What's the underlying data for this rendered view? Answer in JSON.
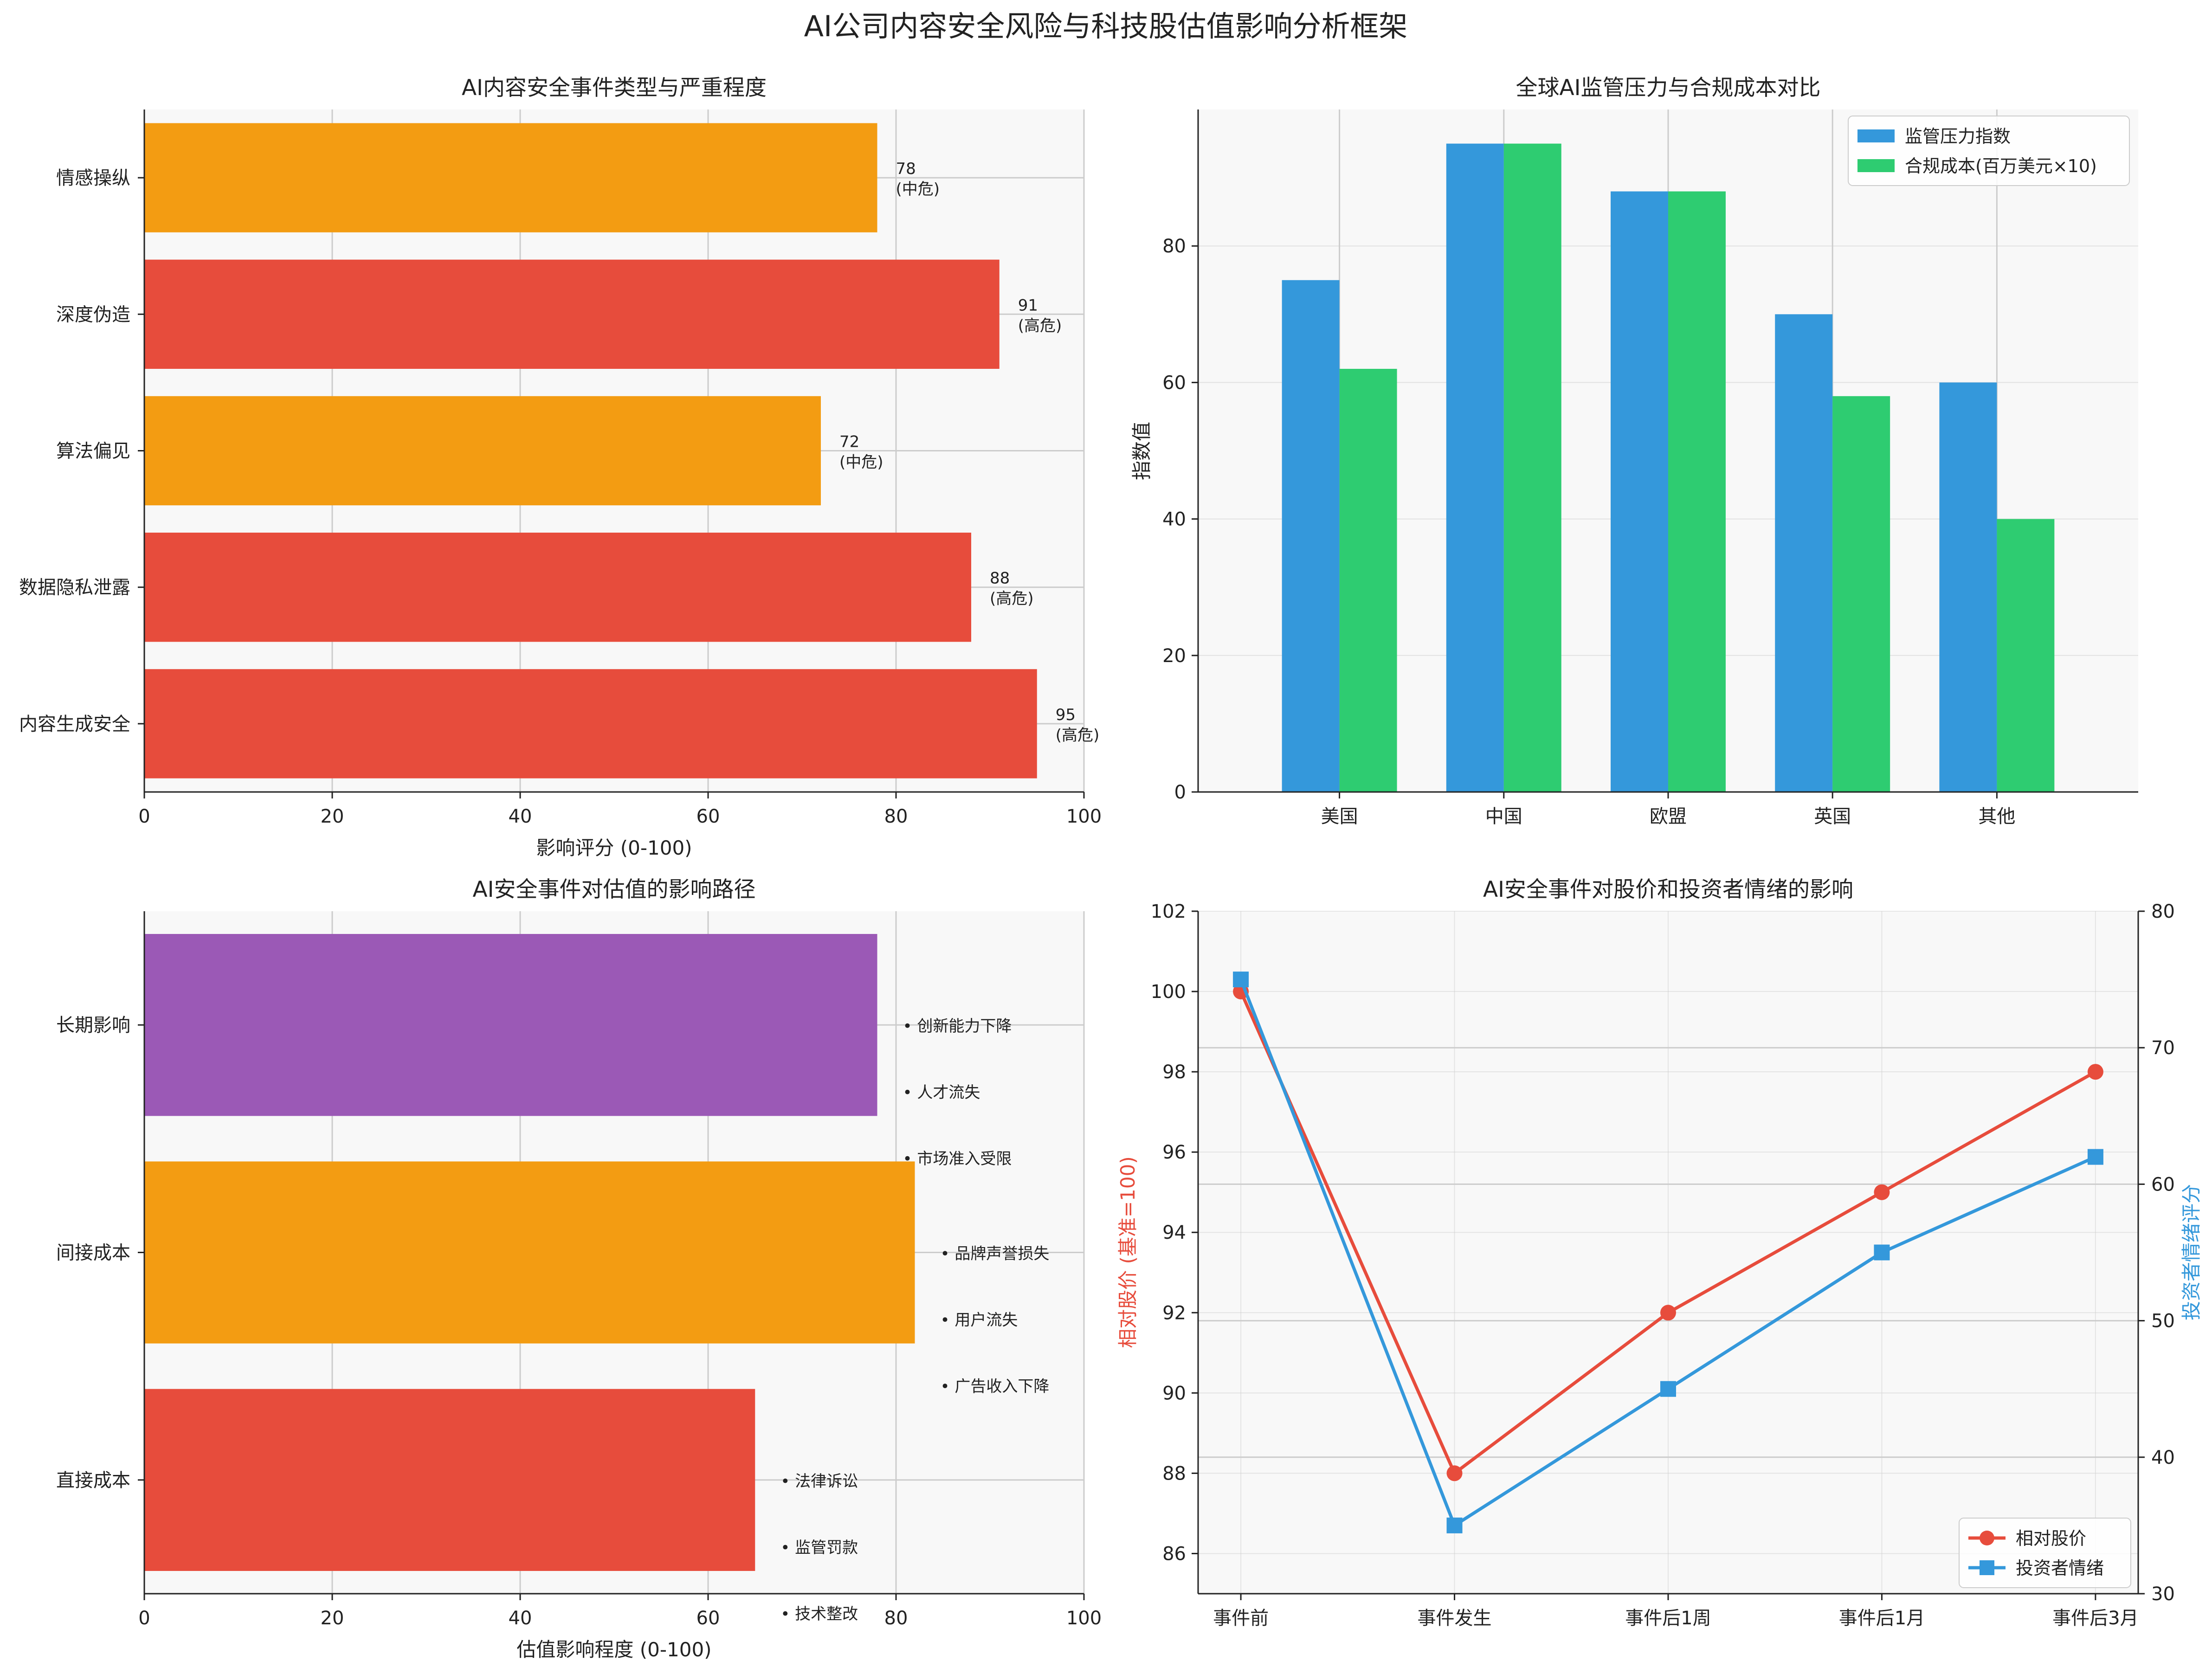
{
  "figure_title": "AI公司内容安全风险与科技股估值影响分析框架",
  "colors": {
    "red": "#e74c3c",
    "orange": "#f39c12",
    "purple": "#9b59b6",
    "blue": "#3498db",
    "green": "#2ecc71",
    "panel_bg": "#f8f8f8",
    "grid": "#cccccc"
  },
  "chart_data": [
    {
      "id": "incidents",
      "type": "bar",
      "orientation": "horizontal",
      "title": "AI内容安全事件类型与严重程度",
      "xlabel": "影响评分 (0-100)",
      "ylabel": "",
      "xlim": [
        0,
        100
      ],
      "xticks": [
        0,
        20,
        40,
        60,
        80,
        100
      ],
      "categories": [
        "内容生成安全",
        "数据隐私泄露",
        "算法偏见",
        "深度伪造",
        "情感操纵"
      ],
      "values": [
        95,
        88,
        72,
        91,
        78
      ],
      "levels": [
        "高危",
        "高危",
        "中危",
        "高危",
        "中危"
      ],
      "bar_colors": [
        "#e74c3c",
        "#e74c3c",
        "#f39c12",
        "#e74c3c",
        "#f39c12"
      ]
    },
    {
      "id": "regulation",
      "type": "bar",
      "orientation": "vertical",
      "title": "全球AI监管压力与合规成本对比",
      "xlabel": "",
      "ylabel": "指数值",
      "ylim": [
        0,
        100
      ],
      "yticks": [
        0,
        20,
        40,
        60,
        80
      ],
      "categories": [
        "美国",
        "中国",
        "欧盟",
        "英国",
        "其他"
      ],
      "series": [
        {
          "name": "监管压力指数",
          "values": [
            75,
            95,
            88,
            70,
            60
          ],
          "color": "#3498db"
        },
        {
          "name": "合规成本(百万美元×10)",
          "values": [
            62,
            95,
            88,
            58,
            40
          ],
          "color": "#2ecc71"
        }
      ],
      "legend": "top-right"
    },
    {
      "id": "paths",
      "type": "bar",
      "orientation": "horizontal",
      "title": "AI安全事件对估值的影响路径",
      "xlabel": "估值影响程度 (0-100)",
      "ylabel": "",
      "xlim": [
        0,
        100
      ],
      "xticks": [
        0,
        20,
        40,
        60,
        80,
        100
      ],
      "categories": [
        "直接成本",
        "间接成本",
        "长期影响"
      ],
      "values": [
        65,
        82,
        78
      ],
      "bar_colors": [
        "#e74c3c",
        "#f39c12",
        "#9b59b6"
      ],
      "bullet_marker": "•",
      "details": [
        [
          "法律诉讼",
          "监管罚款",
          "技术整改"
        ],
        [
          "品牌声誉损失",
          "用户流失",
          "广告收入下降"
        ],
        [
          "创新能力下降",
          "人才流失",
          "市场准入受限"
        ]
      ]
    },
    {
      "id": "timeline",
      "type": "line",
      "title": "AI安全事件对股价和投资者情绪的影响",
      "x": [
        "事件前",
        "事件发生",
        "事件后1周",
        "事件后1月",
        "事件后3月"
      ],
      "ylabel_left": "相对股价 (基准=100)",
      "ylabel_right": "投资者情绪评分",
      "ylim_left": [
        85,
        102
      ],
      "ylim_right": [
        30,
        80
      ],
      "yticks_left": [
        86,
        88,
        90,
        92,
        94,
        96,
        98,
        100,
        102
      ],
      "yticks_right": [
        30,
        40,
        50,
        60,
        70,
        80
      ],
      "series": [
        {
          "name": "相对股价",
          "values": [
            100,
            88,
            92,
            95,
            98
          ],
          "color": "#e74c3c",
          "marker": "circle",
          "axis": "left"
        },
        {
          "name": "投资者情绪",
          "values": [
            75,
            35,
            45,
            55,
            62
          ],
          "color": "#3498db",
          "marker": "square",
          "axis": "right"
        }
      ],
      "legend": "bottom-right"
    }
  ]
}
